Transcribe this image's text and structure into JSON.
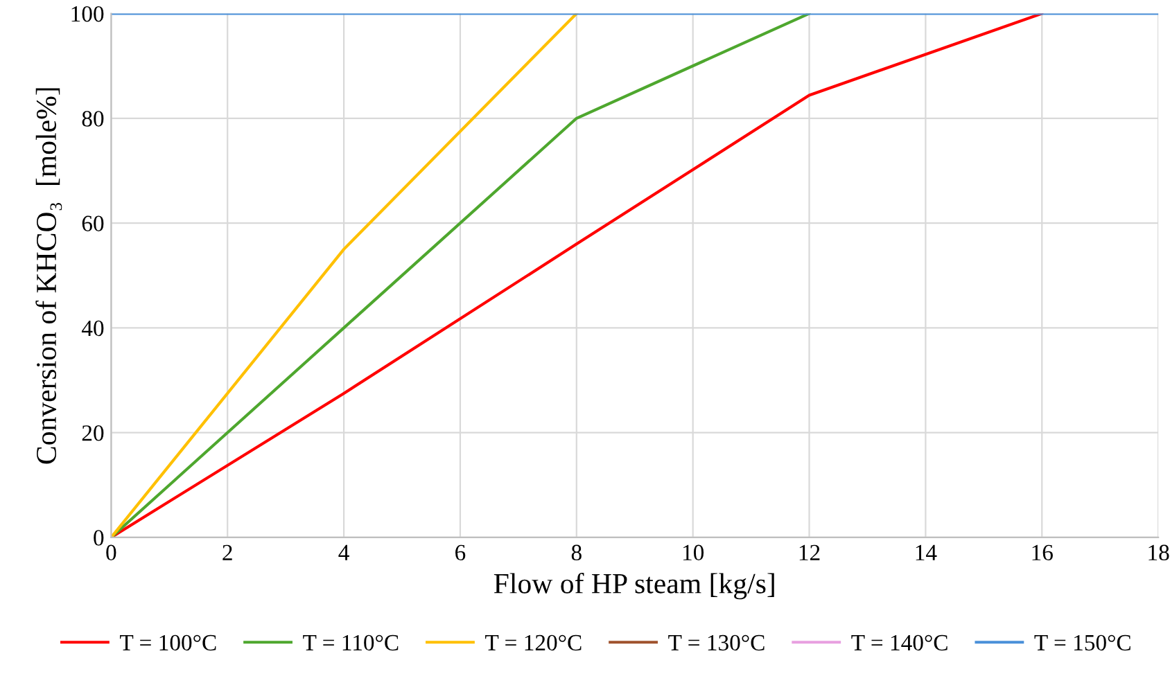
{
  "chart_data": {
    "type": "line",
    "xlabel": "Flow of HP steam [kg/s]",
    "ylabel": "Conversion of KHCO₃  [mole%]",
    "xlim": [
      0,
      18
    ],
    "xticks": [
      0,
      2,
      4,
      6,
      8,
      10,
      12,
      14,
      16,
      18
    ],
    "ylim": [
      0,
      100
    ],
    "yticks": [
      0,
      20,
      40,
      60,
      80,
      100
    ],
    "grid": true,
    "legend": "bottom",
    "marker": "none",
    "line_style": "solid",
    "series": [
      {
        "name": "T = 100°C",
        "color": "#ff0000",
        "x": [
          0,
          4,
          8,
          12,
          16
        ],
        "values": [
          0,
          27.5,
          56,
          84.4,
          100
        ]
      },
      {
        "name": "T = 110°C",
        "color": "#4ea72e",
        "x": [
          0,
          4,
          8,
          12
        ],
        "values": [
          0,
          40,
          80,
          100
        ]
      },
      {
        "name": "T = 120°C",
        "color": "#ffc000",
        "x": [
          0,
          4,
          8
        ],
        "values": [
          0,
          55,
          100
        ]
      },
      {
        "name": "T = 130°C",
        "color": "#a0522d"
      },
      {
        "name": "T = 140°C",
        "color": "#e8a0e0"
      },
      {
        "name": "T = 150°C",
        "color": "#4a90d9",
        "x": [
          0,
          18
        ],
        "values": [
          100,
          100
        ]
      }
    ]
  }
}
